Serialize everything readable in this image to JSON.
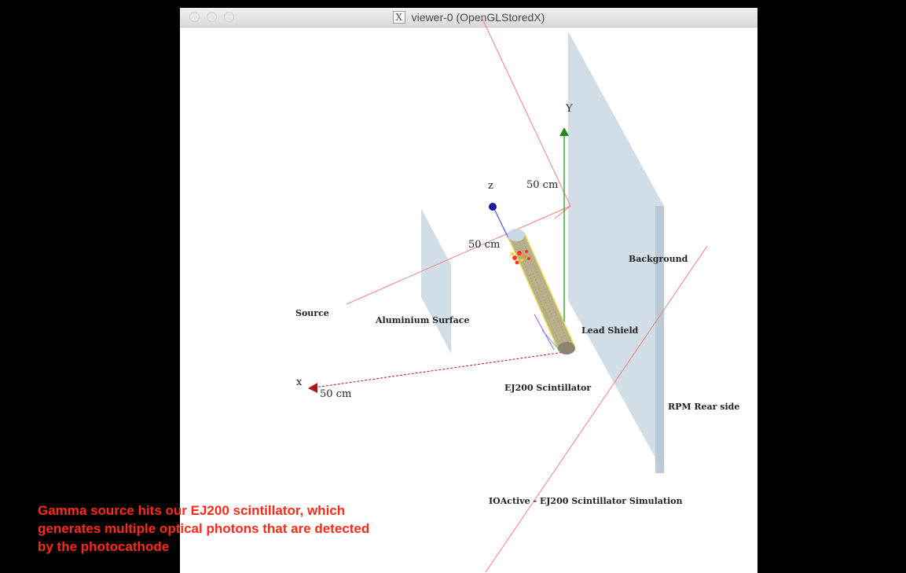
{
  "window": {
    "title": "viewer-0 (OpenGLStoredX)",
    "title_icon": "x11-icon",
    "traffic_lights": [
      "close",
      "minimize",
      "zoom"
    ]
  },
  "scene": {
    "axes": {
      "x_label": "x",
      "y_label": "Y",
      "z_label": "z",
      "x_length": "50 cm",
      "y_length": "50 cm",
      "z_length": "50 cm",
      "x_color": "#b01818",
      "y_color": "#1e8a1e",
      "z_color": "#1a1a9a"
    },
    "labels": {
      "source": "Source",
      "aluminium": "Aluminium Surface",
      "background": "Background",
      "lead_shield": "Lead Shield",
      "scintillator": "EJ200 Scintillator",
      "rpm_rear": "RPM Rear side",
      "sim_title": "IOActive - EJ200 Scintillator Simulation"
    },
    "colors": {
      "panel": "#c9d8e4",
      "trajectory": "#f08080",
      "cylinder": "#b7b08a",
      "hits": "#ff3b1f"
    }
  },
  "caption": {
    "lines": [
      "Gamma source  hits our EJ200 scintillator, which",
      "generates multiple optical photons that are detected",
      "by the photocathode"
    ],
    "color": "#ff2a1a"
  }
}
